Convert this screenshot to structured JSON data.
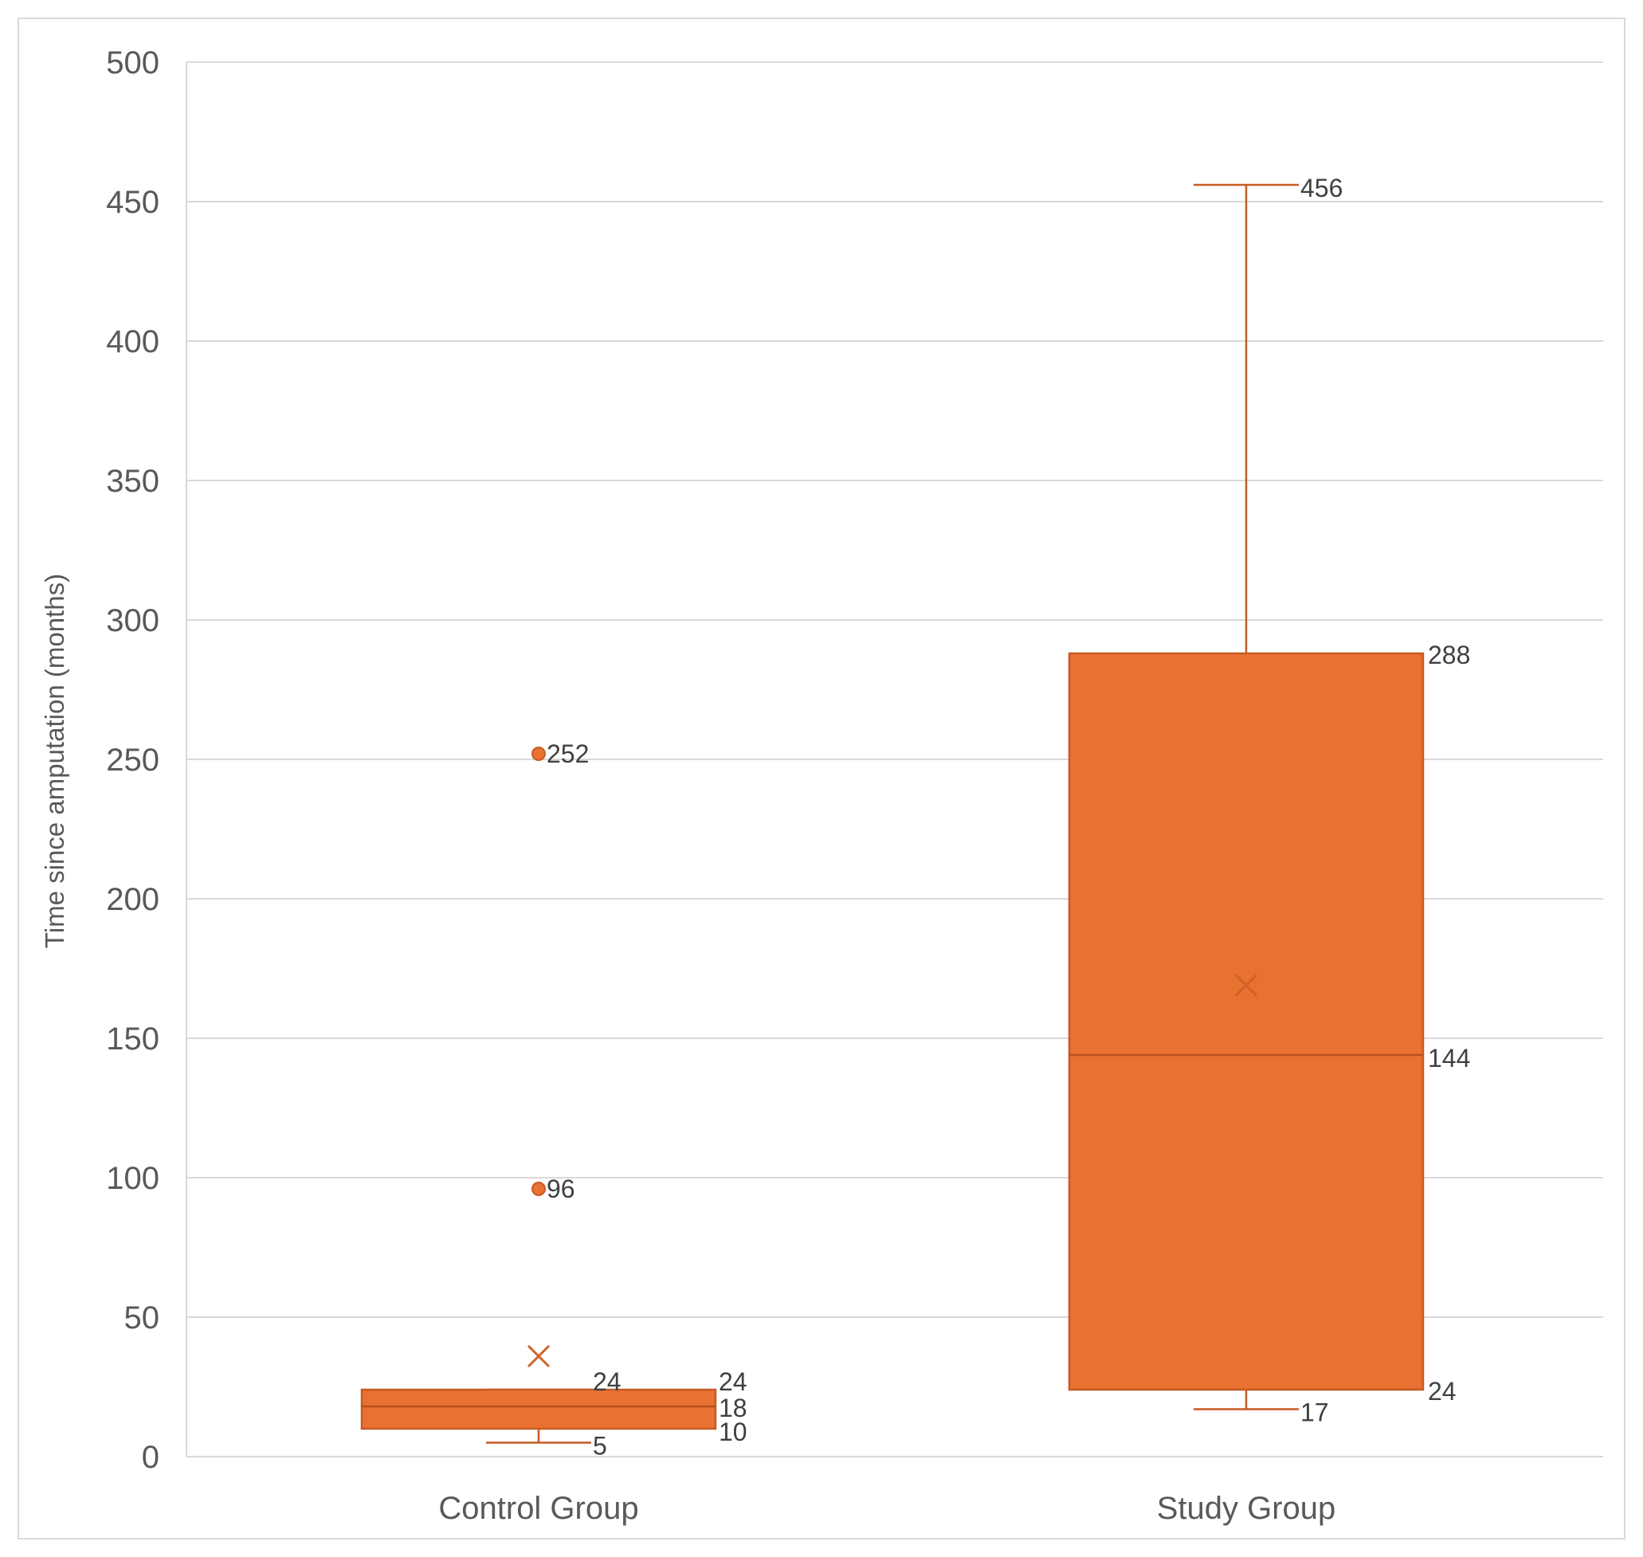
{
  "chart_data": {
    "type": "box",
    "title": "",
    "xlabel": "",
    "ylabel": "Time since amputation (months)",
    "ylim": [
      0,
      500
    ],
    "yticks": [
      0,
      50,
      100,
      150,
      200,
      250,
      300,
      350,
      400,
      450,
      500
    ],
    "grid": true,
    "legend": "none",
    "color": "#E97132",
    "edge_color": "#C65A24",
    "categories": [
      "Control Group",
      "Study Group"
    ],
    "boxes": [
      {
        "name": "Control Group",
        "whisker_min": 5,
        "q1": 10,
        "median": 18,
        "q3": 24,
        "whisker_max": 24,
        "mean": 36,
        "outliers": [
          96,
          252
        ]
      },
      {
        "name": "Study Group",
        "whisker_min": 17,
        "q1": 24,
        "median": 144,
        "q3": 288,
        "whisker_max": 456,
        "mean": 169,
        "outliers": []
      }
    ]
  }
}
